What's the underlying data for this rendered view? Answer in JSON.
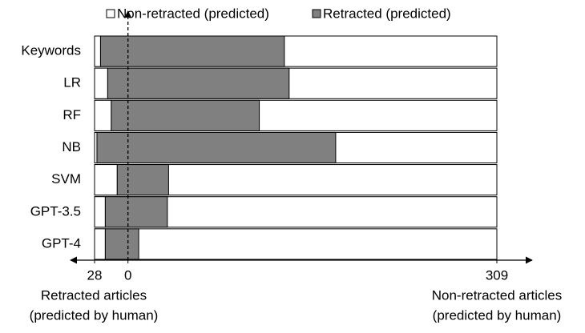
{
  "chart_data": {
    "type": "diverging-stacked-bar",
    "categories": [
      "Keywords",
      "LR",
      "RF",
      "NB",
      "SVM",
      "GPT-3.5",
      "GPT-4"
    ],
    "series": [
      {
        "name": "Non-retracted (predicted)",
        "color": "#ffffff",
        "values": [
          5,
          11,
          14,
          2,
          19,
          9,
          9
        ]
      },
      {
        "name": "Retracted (predicted)",
        "color": "#808080",
        "values": [
          154,
          152,
          124,
          200,
          43,
          52,
          28
        ]
      }
    ],
    "xlim": [
      -28,
      309
    ],
    "xticks": [
      {
        "value": -28,
        "label": "28"
      },
      0,
      309
    ],
    "x_label_left": [
      "Retracted articles",
      "(predicted by human)"
    ],
    "x_label_right": [
      "Non-retracted articles",
      "(predicted by human)"
    ]
  }
}
